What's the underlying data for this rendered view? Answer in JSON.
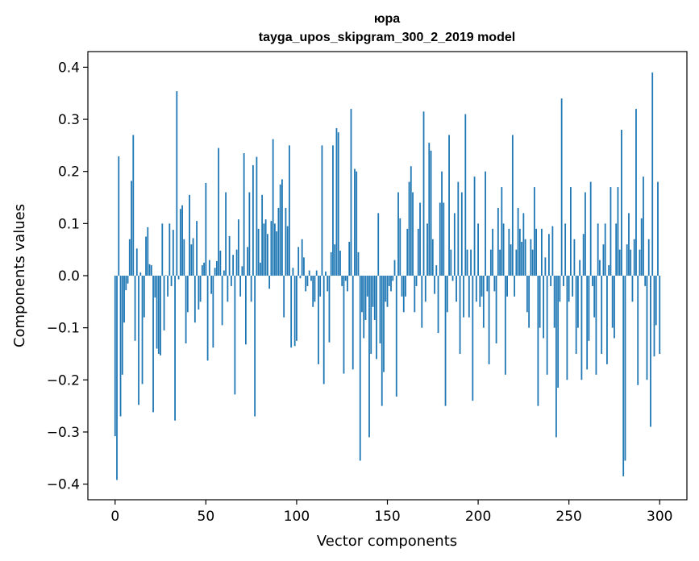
{
  "chart_data": {
    "type": "bar",
    "title": "юра",
    "subtitle": "tayga_upos_skipgram_300_2_2019 model",
    "xlabel": "Vector components",
    "ylabel": "Components values",
    "xlim": [
      -15,
      315
    ],
    "ylim": [
      -0.43,
      0.43
    ],
    "xticks": [
      0,
      50,
      100,
      150,
      200,
      250,
      300
    ],
    "xtick_labels": [
      "0",
      "50",
      "100",
      "150",
      "200",
      "250",
      "300"
    ],
    "yticks": [
      -0.4,
      -0.3,
      -0.2,
      -0.1,
      0.0,
      0.1,
      0.2,
      0.3,
      0.4
    ],
    "ytick_labels": [
      "−0.4",
      "−0.3",
      "−0.2",
      "−0.1",
      "0.0",
      "0.1",
      "0.2",
      "0.3",
      "0.4"
    ],
    "bar_color": "#1f77b4",
    "grid": false,
    "values": [
      -0.308,
      -0.392,
      0.229,
      -0.27,
      -0.19,
      -0.09,
      -0.028,
      -0.015,
      0.07,
      0.182,
      0.27,
      -0.125,
      0.052,
      -0.248,
      0.006,
      -0.208,
      -0.08,
      0.075,
      0.093,
      0.022,
      0.02,
      -0.262,
      -0.042,
      -0.14,
      -0.15,
      -0.153,
      0.1,
      -0.105,
      0.001,
      -0.04,
      0.1,
      -0.02,
      0.088,
      -0.278,
      0.354,
      -0.007,
      0.128,
      0.135,
      0.07,
      -0.13,
      -0.07,
      0.155,
      0.06,
      0.072,
      -0.09,
      0.105,
      -0.065,
      -0.05,
      0.02,
      0.025,
      0.178,
      -0.163,
      0.03,
      -0.035,
      -0.138,
      0.015,
      0.028,
      0.245,
      0.048,
      -0.095,
      0.01,
      0.16,
      -0.05,
      0.076,
      -0.02,
      0.04,
      -0.228,
      0.05,
      0.108,
      -0.04,
      0.018,
      0.235,
      -0.132,
      0.055,
      0.16,
      -0.05,
      0.212,
      -0.27,
      0.228,
      0.09,
      0.025,
      0.155,
      0.1,
      0.108,
      0.08,
      -0.025,
      0.105,
      0.262,
      0.1,
      0.085,
      0.13,
      0.175,
      0.185,
      -0.08,
      0.13,
      0.095,
      0.25,
      -0.138,
      0.015,
      -0.135,
      -0.125,
      0.055,
      -0.005,
      0.07,
      0.035,
      -0.03,
      -0.02,
      0.01,
      -0.01,
      -0.06,
      -0.05,
      0.01,
      -0.17,
      -0.04,
      0.25,
      -0.208,
      0.008,
      -0.03,
      -0.128,
      0.045,
      0.25,
      0.06,
      0.283,
      0.275,
      0.048,
      -0.02,
      -0.188,
      -0.01,
      -0.03,
      0.065,
      0.32,
      -0.18,
      0.205,
      0.2,
      0.045,
      -0.355,
      -0.07,
      -0.12,
      -0.085,
      -0.04,
      -0.31,
      -0.15,
      -0.06,
      -0.085,
      -0.16,
      0.12,
      -0.13,
      -0.25,
      -0.185,
      -0.05,
      -0.06,
      -0.02,
      -0.03,
      -0.01,
      0.03,
      -0.232,
      0.16,
      0.11,
      -0.04,
      -0.07,
      -0.04,
      0.09,
      0.18,
      0.21,
      0.16,
      -0.07,
      -0.02,
      0.09,
      0.14,
      -0.1,
      0.315,
      -0.05,
      0.1,
      0.255,
      0.24,
      0.07,
      -0.035,
      0.02,
      -0.11,
      0.14,
      0.2,
      0.14,
      -0.25,
      -0.07,
      0.27,
      0.05,
      -0.01,
      0.12,
      -0.05,
      0.18,
      -0.15,
      0.16,
      -0.08,
      0.31,
      0.05,
      -0.08,
      0.05,
      -0.24,
      0.19,
      -0.05,
      0.1,
      -0.06,
      -0.04,
      -0.1,
      0.2,
      -0.03,
      -0.17,
      0.05,
      0.09,
      -0.03,
      -0.13,
      0.13,
      0.05,
      0.17,
      0.1,
      -0.19,
      -0.04,
      0.09,
      0.06,
      0.27,
      -0.04,
      0.05,
      0.13,
      0.09,
      0.065,
      0.12,
      0.07,
      -0.07,
      -0.1,
      0.07,
      0.05,
      0.17,
      0.09,
      -0.25,
      -0.1,
      0.09,
      -0.12,
      0.035,
      -0.19,
      0.08,
      -0.02,
      0.095,
      -0.1,
      -0.31,
      -0.215,
      -0.05,
      0.34,
      -0.02,
      0.1,
      -0.2,
      -0.05,
      0.17,
      -0.04,
      0.07,
      -0.15,
      -0.1,
      0.03,
      -0.2,
      0.08,
      0.16,
      -0.18,
      -0.125,
      0.18,
      -0.02,
      -0.08,
      -0.19,
      0.1,
      0.03,
      -0.15,
      0.06,
      0.1,
      -0.17,
      0.02,
      0.17,
      -0.1,
      -0.12,
      0.1,
      0.17,
      0.05,
      0.28,
      -0.385,
      -0.355,
      0.06,
      0.12,
      0.05,
      -0.05,
      0.07,
      0.32,
      -0.21,
      0.05,
      0.11,
      0.19,
      -0.02,
      -0.2,
      0.07,
      -0.29,
      0.39,
      -0.155,
      -0.095,
      0.18,
      -0.15
    ]
  }
}
